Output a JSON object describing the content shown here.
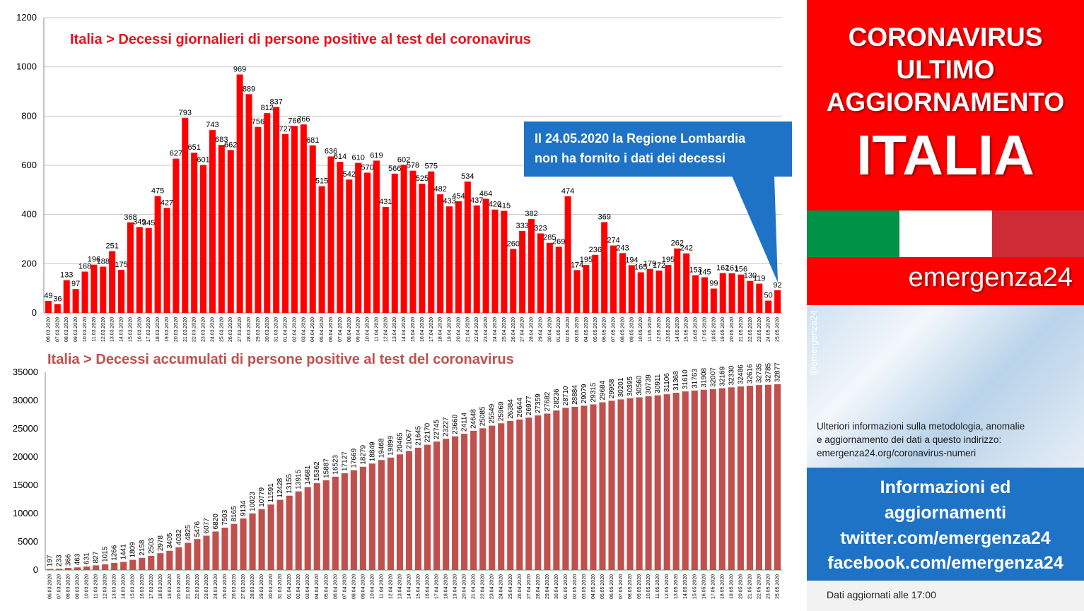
{
  "charts": [
    {
      "type": "bar",
      "title": "Italia > Decessi giornalieri di persone positive al test del coronavirus",
      "color": "#ff0000",
      "ylim": [
        0,
        1200
      ],
      "yticks": [
        0,
        200,
        400,
        600,
        800,
        1000,
        1200
      ],
      "series": [
        {
          "values": [
            49,
            36,
            133,
            97,
            168,
            196,
            188,
            251,
            175,
            368,
            349,
            345,
            475,
            427,
            627,
            793,
            651,
            601,
            743,
            683,
            662,
            969,
            889,
            756,
            812,
            837,
            727,
            760,
            766,
            681,
            515,
            636,
            614,
            542,
            610,
            570,
            619,
            431,
            566,
            602,
            578,
            525,
            575,
            482,
            433,
            454,
            534,
            437,
            464,
            420,
            415,
            260,
            333,
            382,
            323,
            285,
            269,
            474,
            174,
            195,
            236,
            369,
            274,
            243,
            194,
            165,
            179,
            172,
            195,
            262,
            242,
            153,
            145,
            99,
            162,
            161,
            156,
            130,
            119,
            50,
            92
          ]
        }
      ]
    },
    {
      "type": "bar",
      "title": "Italia > Decessi accumulati di persone positive al test del coronavirus",
      "color": "#c0504d",
      "ylim": [
        0,
        35000
      ],
      "yticks": [
        0,
        5000,
        10000,
        15000,
        20000,
        25000,
        30000,
        35000
      ],
      "series": [
        {
          "values": [
            197,
            233,
            366,
            463,
            631,
            827,
            1015,
            1266,
            1441,
            1809,
            2158,
            2503,
            2978,
            3405,
            4032,
            4825,
            5476,
            6077,
            6820,
            7503,
            8165,
            9134,
            10023,
            10779,
            11591,
            12428,
            13155,
            13915,
            14681,
            15362,
            15887,
            16523,
            17127,
            17669,
            18279,
            18849,
            19468,
            19899,
            20465,
            21067,
            21645,
            22170,
            22745,
            23227,
            23660,
            24114,
            24648,
            25085,
            25549,
            25969,
            26384,
            26644,
            26977,
            27359,
            27682,
            28236,
            28710,
            28884,
            29079,
            29315,
            29684,
            29958,
            30201,
            30395,
            30560,
            30739,
            30911,
            31106,
            31368,
            31610,
            31763,
            31908,
            32007,
            32169,
            32330,
            32486,
            32616,
            32735,
            32785,
            32877
          ]
        }
      ]
    }
  ],
  "chart_data": [
    {
      "type": "bar",
      "title": "Italia > Decessi giornalieri di persone positive al test del coronavirus",
      "categories": [
        "06.03.2020",
        "07.03.2020",
        "08.03.2020",
        "09.03.2020",
        "10.03.2020",
        "11.03.2020",
        "12.03.2020",
        "13.03.2020",
        "14.03.2020",
        "15.03.2020",
        "16.03.2020",
        "17.03.2020",
        "18.03.2020",
        "19.03.2020",
        "20.03.2020",
        "21.03.2020",
        "22.03.2020",
        "23.03.2020",
        "24.03.2020",
        "25.03.2020",
        "26.03.2020",
        "27.03.2020",
        "28.03.2020",
        "29.03.2020",
        "30.03.2020",
        "31.03.2020",
        "01.04.2020",
        "02.04.2020",
        "03.04.2020",
        "04.04.2020",
        "05.04.2020",
        "06.04.2020",
        "07.04.2020",
        "08.04.2020",
        "09.04.2020",
        "10.04.2020",
        "11.04.2020",
        "12.04.2020",
        "13.04.2020",
        "14.04.2020",
        "15.04.2020",
        "16.04.2020",
        "17.04.2020",
        "18.04.2020",
        "19.04.2020",
        "20.04.2020",
        "21.04.2020",
        "22.04.2020",
        "23.04.2020",
        "24.04.2020",
        "25.04.2020",
        "26.04.2020",
        "27.04.2020",
        "28.04.2020",
        "29.04.2020",
        "30.04.2020",
        "01.05.2020",
        "02.05.2020",
        "03.05.2020",
        "04.05.2020",
        "05.05.2020",
        "06.05.2020",
        "07.05.2020",
        "08.05.2020",
        "09.05.2020",
        "10.05.2020",
        "11.05.2020",
        "12.05.2020",
        "13.05.2020",
        "14.05.2020",
        "15.05.2020",
        "16.05.2020",
        "17.05.2020",
        "18.05.2020",
        "19.05.2020",
        "20.05.2020",
        "21.05.2020",
        "22.05.2020",
        "23.05.2020",
        "24.05.2020",
        "25.05.2020"
      ],
      "values": [
        49,
        36,
        133,
        97,
        168,
        196,
        188,
        251,
        175,
        368,
        349,
        345,
        475,
        427,
        627,
        793,
        651,
        601,
        743,
        683,
        662,
        969,
        889,
        756,
        812,
        837,
        727,
        760,
        766,
        681,
        515,
        636,
        614,
        542,
        610,
        570,
        619,
        431,
        566,
        602,
        578,
        525,
        575,
        482,
        433,
        454,
        534,
        437,
        464,
        420,
        415,
        260,
        333,
        382,
        323,
        285,
        269,
        474,
        174,
        195,
        236,
        369,
        274,
        243,
        194,
        165,
        179,
        172,
        195,
        262,
        242,
        153,
        145,
        99,
        162,
        161,
        156,
        130,
        119,
        50,
        92
      ],
      "ylim": [
        0,
        1200
      ],
      "grid": true
    },
    {
      "type": "bar",
      "title": "Italia > Decessi accumulati di persone positive al test del coronavirus",
      "categories": [
        "06.03.2020",
        "07.03.2020",
        "08.03.2020",
        "09.03.2020",
        "10.03.2020",
        "11.03.2020",
        "12.03.2020",
        "13.03.2020",
        "14.03.2020",
        "15.03.2020",
        "16.03.2020",
        "17.03.2020",
        "18.03.2020",
        "19.03.2020",
        "20.03.2020",
        "21.03.2020",
        "22.03.2020",
        "23.03.2020",
        "24.03.2020",
        "25.03.2020",
        "26.03.2020",
        "27.03.2020",
        "28.03.2020",
        "29.03.2020",
        "30.03.2020",
        "31.03.2020",
        "01.04.2020",
        "02.04.2020",
        "03.04.2020",
        "04.04.2020",
        "05.04.2020",
        "06.04.2020",
        "07.04.2020",
        "08.04.2020",
        "09.04.2020",
        "10.04.2020",
        "11.04.2020",
        "12.04.2020",
        "13.04.2020",
        "14.04.2020",
        "15.04.2020",
        "16.04.2020",
        "17.04.2020",
        "18.04.2020",
        "19.04.2020",
        "20.04.2020",
        "21.04.2020",
        "22.04.2020",
        "23.04.2020",
        "24.04.2020",
        "25.04.2020",
        "26.04.2020",
        "27.04.2020",
        "28.04.2020",
        "29.04.2020",
        "30.04.2020",
        "01.05.2020",
        "02.05.2020",
        "03.05.2020",
        "04.05.2020",
        "05.05.2020",
        "06.05.2020",
        "07.05.2020",
        "08.05.2020",
        "09.05.2020",
        "10.05.2020",
        "11.05.2020",
        "12.05.2020",
        "13.05.2020",
        "14.05.2020",
        "15.05.2020",
        "16.05.2020",
        "17.05.2020",
        "18.05.2020",
        "19.05.2020",
        "20.05.2020",
        "21.05.2020",
        "22.05.2020",
        "23.05.2020",
        "25.05.2020"
      ],
      "values": [
        197,
        233,
        366,
        463,
        631,
        827,
        1015,
        1266,
        1441,
        1809,
        2158,
        2503,
        2978,
        3405,
        4032,
        4825,
        5476,
        6077,
        6820,
        7503,
        8165,
        9134,
        10023,
        10779,
        11591,
        12428,
        13155,
        13915,
        14681,
        15362,
        15887,
        16523,
        17127,
        17669,
        18279,
        18849,
        19468,
        19899,
        20465,
        21067,
        21645,
        22170,
        22745,
        23227,
        23660,
        24114,
        24648,
        25085,
        25549,
        25969,
        26384,
        26644,
        26977,
        27359,
        27682,
        28236,
        28710,
        28884,
        29079,
        29315,
        29684,
        29958,
        30201,
        30395,
        30560,
        30739,
        30911,
        31106,
        31368,
        31610,
        31763,
        31908,
        32007,
        32169,
        32330,
        32486,
        32616,
        32735,
        32785,
        32877
      ],
      "ylim": [
        0,
        35000
      ],
      "grid": false
    }
  ],
  "callout": {
    "line1": "Il 24.05.2020 la Regione Lombardia",
    "line2": "non ha fornito i dati dei decessi"
  },
  "panel": {
    "header_line1": "CORONAVIRUS",
    "header_line2": "ULTIMO",
    "header_line3": "AGGIORNAMENTO",
    "country": "ITALIA",
    "flag_colors": [
      "#009246",
      "#ffffff",
      "#ce2b37"
    ],
    "brand": "emergenza24",
    "handle": "@emergenza24",
    "info_line1": "Ulteriori informazioni sulla metodologia, anomalie",
    "info_line2": "e aggiornamento dei dati a questo indirizzo:",
    "info_line3": "emergenza24.org/coronavirus-numeri",
    "social_line1": "Informazioni ed",
    "social_line2": "aggiornamenti",
    "social_line3": "twitter.com/emergenza24",
    "social_line4": "facebook.com/emergenza24",
    "footer": "Dati aggiornati alle 17:00"
  }
}
